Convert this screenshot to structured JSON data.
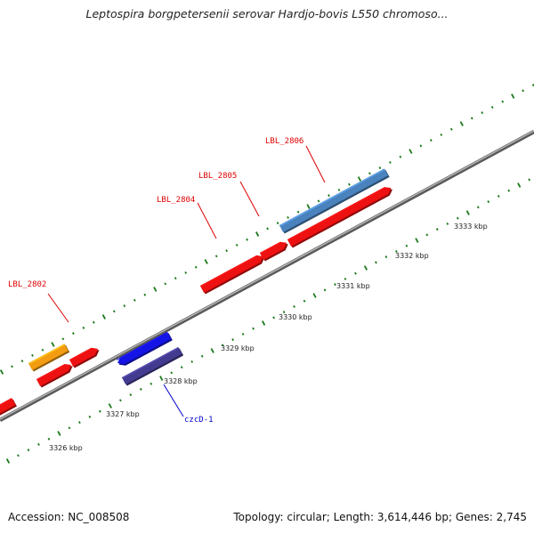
{
  "title": "Leptospira borgpetersenii serovar Hardjo-bovis L550 chromoso...",
  "footer": {
    "accession": "Accession: NC_008508",
    "stats": "Topology: circular; Length: 3,614,446 bp; Genes: 2,745"
  },
  "colors": {
    "backbone": "#8c8c8c",
    "tick_major": "#1a7a1a",
    "tick_minor": "#1a7a1a",
    "gene_red": "#ee1111",
    "gene_orange": "#f39c12",
    "gene_blue": "#1414e6",
    "gene_navy": "#433b8f",
    "gene_steel": "#4a82bd",
    "label_red": "#dd0000",
    "label_blue": "#0000cc"
  },
  "kbp_labels": [
    "3326 kbp",
    "3327 kbp",
    "3328 kbp",
    "3329 kbp",
    "3330 kbp",
    "3331 kbp",
    "3332 kbp",
    "3333 kbp"
  ],
  "gene_labels": [
    {
      "id": "LBL_2802",
      "text": "LBL_2802",
      "color": "label_red"
    },
    {
      "id": "LBL_2804",
      "text": "LBL_2804",
      "color": "label_red"
    },
    {
      "id": "LBL_2805",
      "text": "LBL_2805",
      "color": "label_red"
    },
    {
      "id": "LBL_2806",
      "text": "LBL_2806",
      "color": "label_red"
    },
    {
      "id": "czcD-1",
      "text": "czcD-1",
      "color": "label_blue"
    }
  ],
  "genes": [
    {
      "name": "gene-left-edge",
      "color": "gene_red",
      "strand": "reverse",
      "arrow": "left"
    },
    {
      "name": "gene-orange",
      "color": "gene_orange",
      "strand": "forward",
      "arrow": "none"
    },
    {
      "name": "gene-red-lower-1",
      "color": "gene_red",
      "strand": "forward",
      "arrow": "right"
    },
    {
      "name": "gene-red-upper-1",
      "color": "gene_red",
      "strand": "forward",
      "arrow": "right"
    },
    {
      "name": "gene-blue",
      "color": "gene_blue",
      "strand": "reverse",
      "arrow": "left"
    },
    {
      "name": "gene-czcD-1",
      "color": "gene_navy",
      "strand": "reverse",
      "arrow": "none"
    },
    {
      "name": "gene-LBL_2804",
      "color": "gene_red",
      "strand": "forward",
      "arrow": "right"
    },
    {
      "name": "gene-LBL_2805",
      "color": "gene_red",
      "strand": "forward",
      "arrow": "right"
    },
    {
      "name": "gene-LBL_2806-red",
      "color": "gene_red",
      "strand": "forward",
      "arrow": "right"
    },
    {
      "name": "gene-LBL_2806",
      "color": "gene_steel",
      "strand": "forward",
      "arrow": "none"
    }
  ]
}
